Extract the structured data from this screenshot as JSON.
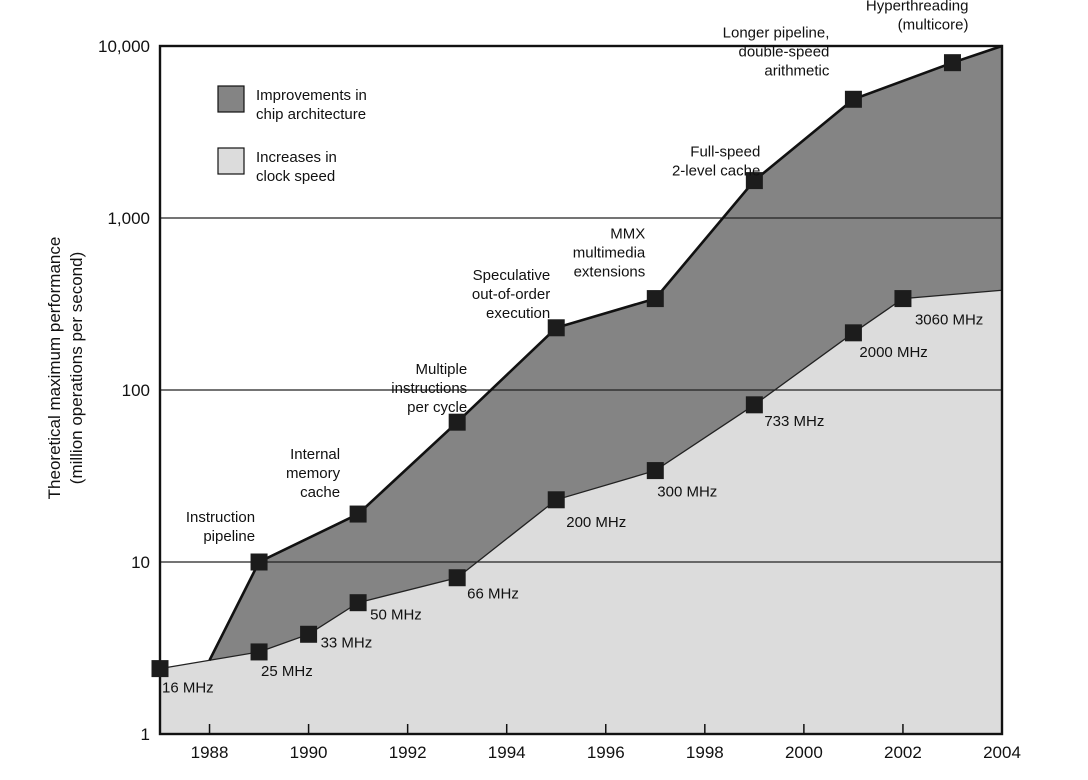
{
  "chart_data": {
    "type": "area",
    "y_scale": "log",
    "xlim": [
      1987,
      2004
    ],
    "ylim": [
      1,
      10000
    ],
    "x_ticks": [
      "1988",
      "1990",
      "1992",
      "1994",
      "1996",
      "1998",
      "2000",
      "2002",
      "2004"
    ],
    "y_ticks": [
      "1",
      "10",
      "100",
      "1,000",
      "10,000"
    ],
    "ylabel": [
      "Theoretical maximum performance",
      "(million operations per second)"
    ],
    "grid": "horizontal at 10, 100, 1,000",
    "legend_placement": "top-left",
    "legend": [
      {
        "label": [
          "Improvements in",
          "chip architecture"
        ],
        "color": "#848484"
      },
      {
        "label": [
          "Increases in",
          "clock speed"
        ],
        "color": "#dcdcdc"
      }
    ],
    "series": [
      {
        "name": "Improvements in chip architecture",
        "color": "#848484",
        "x": [
          1989,
          1991,
          1993,
          1995,
          1997,
          1999,
          2001,
          2003,
          2004
        ],
        "y": [
          10,
          19,
          65,
          230,
          340,
          1650,
          4900,
          8000,
          10000
        ],
        "annotations": [
          [
            "Instruction",
            "pipeline"
          ],
          [
            "Internal",
            "memory",
            "cache"
          ],
          [
            "Multiple",
            "instructions",
            "per cycle"
          ],
          [
            "Speculative",
            "out-of-order",
            "execution"
          ],
          [
            "MMX",
            "multimedia",
            "extensions"
          ],
          [
            "Full-speed",
            "2-level cache"
          ],
          [
            "Longer pipeline,",
            "double-speed",
            "arithmetic"
          ],
          [
            "Hyperthreading",
            "(multicore)"
          ]
        ]
      },
      {
        "name": "Increases in clock speed",
        "color": "#dcdcdc",
        "x": [
          1987,
          1989,
          1990,
          1991,
          1993,
          1995,
          1997,
          1999,
          2001,
          2002,
          2004
        ],
        "y": [
          2.4,
          3,
          3.8,
          5.8,
          8.1,
          23,
          34,
          82,
          215,
          340,
          380
        ],
        "labels": [
          "16 MHz",
          "25 MHz",
          "33 MHz",
          "50 MHz",
          "66 MHz",
          "200 MHz",
          "300 MHz",
          "733 MHz",
          "2000 MHz",
          "3060 MHz"
        ]
      }
    ]
  }
}
